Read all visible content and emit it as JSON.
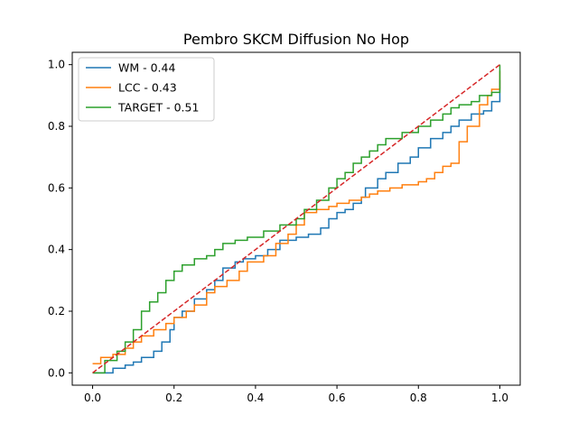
{
  "chart_data": {
    "type": "line",
    "title": "Pembro SKCM Diffusion No Hop",
    "xlabel": "",
    "ylabel": "",
    "xlim": [
      -0.05,
      1.05
    ],
    "ylim": [
      -0.04,
      1.04
    ],
    "xticks": [
      "0.0",
      "0.2",
      "0.4",
      "0.6",
      "0.8",
      "1.0"
    ],
    "yticks": [
      "0.0",
      "0.2",
      "0.4",
      "0.6",
      "0.8",
      "1.0"
    ],
    "grid": false,
    "legend_position": "top-left",
    "reference_line": {
      "x": [
        0,
        1
      ],
      "y": [
        0,
        1
      ],
      "color": "#d62728",
      "style": "dashed"
    },
    "series": [
      {
        "name": "WM - 0.44",
        "color": "#1f77b4",
        "x": [
          0,
          0.05,
          0.08,
          0.1,
          0.12,
          0.15,
          0.17,
          0.19,
          0.2,
          0.22,
          0.25,
          0.28,
          0.3,
          0.32,
          0.35,
          0.37,
          0.4,
          0.43,
          0.46,
          0.5,
          0.53,
          0.56,
          0.58,
          0.6,
          0.62,
          0.64,
          0.66,
          0.67,
          0.7,
          0.72,
          0.75,
          0.78,
          0.8,
          0.83,
          0.86,
          0.88,
          0.9,
          0.93,
          0.96,
          0.98,
          1.0,
          1.0
        ],
        "y": [
          0,
          0.015,
          0.025,
          0.035,
          0.05,
          0.07,
          0.1,
          0.14,
          0.18,
          0.2,
          0.24,
          0.27,
          0.3,
          0.34,
          0.36,
          0.37,
          0.38,
          0.4,
          0.43,
          0.44,
          0.45,
          0.47,
          0.5,
          0.52,
          0.53,
          0.55,
          0.57,
          0.6,
          0.63,
          0.65,
          0.68,
          0.7,
          0.73,
          0.76,
          0.78,
          0.8,
          0.82,
          0.84,
          0.85,
          0.88,
          0.92,
          0.95
        ]
      },
      {
        "name": "LCC - 0.43",
        "color": "#ff7f0e",
        "x": [
          0,
          0.02,
          0.05,
          0.08,
          0.1,
          0.12,
          0.15,
          0.18,
          0.2,
          0.23,
          0.25,
          0.28,
          0.3,
          0.33,
          0.36,
          0.38,
          0.42,
          0.45,
          0.48,
          0.5,
          0.52,
          0.55,
          0.58,
          0.6,
          0.63,
          0.66,
          0.68,
          0.7,
          0.73,
          0.76,
          0.8,
          0.82,
          0.84,
          0.86,
          0.88,
          0.9,
          0.9,
          0.92,
          0.95,
          0.97,
          0.98,
          1.0
        ],
        "y": [
          0.03,
          0.05,
          0.06,
          0.08,
          0.1,
          0.12,
          0.14,
          0.16,
          0.18,
          0.2,
          0.22,
          0.26,
          0.28,
          0.3,
          0.33,
          0.36,
          0.38,
          0.42,
          0.45,
          0.48,
          0.52,
          0.53,
          0.54,
          0.55,
          0.56,
          0.57,
          0.58,
          0.59,
          0.6,
          0.61,
          0.62,
          0.63,
          0.65,
          0.67,
          0.68,
          0.7,
          0.75,
          0.8,
          0.87,
          0.9,
          0.92,
          0.98
        ]
      },
      {
        "name": "TARGET - 0.51",
        "color": "#2ca02c",
        "x": [
          0,
          0.03,
          0.06,
          0.08,
          0.1,
          0.12,
          0.14,
          0.16,
          0.18,
          0.2,
          0.22,
          0.25,
          0.28,
          0.3,
          0.32,
          0.35,
          0.38,
          0.42,
          0.46,
          0.5,
          0.52,
          0.55,
          0.58,
          0.6,
          0.62,
          0.64,
          0.66,
          0.68,
          0.7,
          0.72,
          0.74,
          0.76,
          0.8,
          0.83,
          0.86,
          0.88,
          0.9,
          0.93,
          0.95,
          0.98,
          1.0,
          1.0
        ],
        "y": [
          0,
          0.04,
          0.07,
          0.1,
          0.14,
          0.2,
          0.23,
          0.26,
          0.3,
          0.33,
          0.35,
          0.37,
          0.38,
          0.4,
          0.42,
          0.43,
          0.44,
          0.46,
          0.48,
          0.5,
          0.53,
          0.56,
          0.6,
          0.63,
          0.65,
          0.68,
          0.7,
          0.72,
          0.74,
          0.76,
          0.76,
          0.78,
          0.8,
          0.82,
          0.84,
          0.86,
          0.87,
          0.88,
          0.9,
          0.91,
          0.91,
          1.0
        ]
      }
    ]
  }
}
